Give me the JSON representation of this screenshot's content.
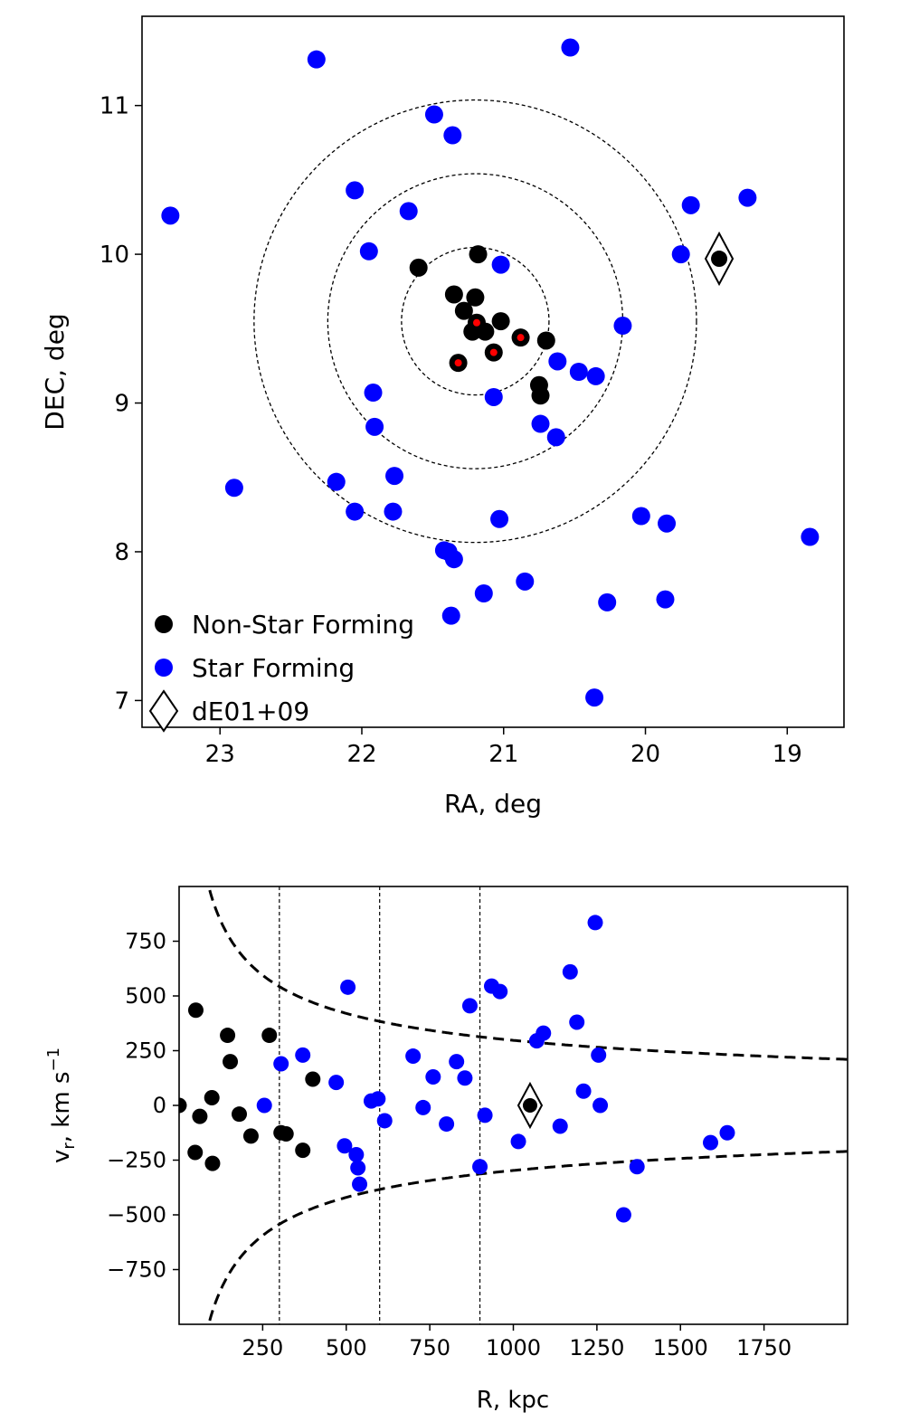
{
  "chart_data": [
    {
      "type": "scatter",
      "xlabel": "RA, deg",
      "ylabel": "DEC, deg",
      "xlim": [
        23.55,
        18.6
      ],
      "ylim": [
        6.82,
        11.6
      ],
      "xticks": [
        "23",
        "22",
        "21",
        "20",
        "19"
      ],
      "xtick_values": [
        23,
        22,
        21,
        20,
        19
      ],
      "yticks": [
        "7",
        "8",
        "9",
        "10",
        "11"
      ],
      "ytick_values": [
        7,
        8,
        9,
        10,
        11
      ],
      "legend_position": "lower-left",
      "legend": [
        "Non-Star Forming",
        "Star Forming",
        "dE01+09"
      ],
      "circles": {
        "center": [
          21.2,
          9.55
        ],
        "radius_deg": [
          0.52,
          1.04,
          1.56
        ],
        "style": "dotted"
      },
      "colors": {
        "non_star_forming": "#000000",
        "star_forming": "#0000ff",
        "highlight": "#ff0000"
      },
      "series": [
        {
          "name": "Non-Star Forming",
          "points": [
            [
              21.6,
              9.91
            ],
            [
              21.18,
              10.0
            ],
            [
              21.35,
              9.73
            ],
            [
              21.2,
              9.71
            ],
            [
              21.28,
              9.62
            ],
            [
              21.19,
              9.54
            ],
            [
              21.22,
              9.48
            ],
            [
              21.13,
              9.48
            ],
            [
              21.02,
              9.55
            ],
            [
              20.88,
              9.44
            ],
            [
              20.7,
              9.42
            ],
            [
              21.07,
              9.34
            ],
            [
              21.32,
              9.27
            ],
            [
              20.75,
              9.12
            ],
            [
              20.74,
              9.05
            ]
          ],
          "highlight_points": [
            [
              21.19,
              9.54
            ],
            [
              20.88,
              9.44
            ],
            [
              21.07,
              9.34
            ],
            [
              21.32,
              9.27
            ]
          ]
        },
        {
          "name": "Star Forming",
          "points": [
            [
              22.32,
              11.31
            ],
            [
              20.53,
              11.39
            ],
            [
              21.49,
              10.94
            ],
            [
              21.36,
              10.8
            ],
            [
              22.05,
              10.43
            ],
            [
              21.67,
              10.29
            ],
            [
              19.68,
              10.33
            ],
            [
              19.28,
              10.38
            ],
            [
              23.35,
              10.26
            ],
            [
              21.95,
              10.02
            ],
            [
              19.75,
              10.0
            ],
            [
              21.02,
              9.93
            ],
            [
              20.16,
              9.52
            ],
            [
              20.62,
              9.28
            ],
            [
              20.47,
              9.21
            ],
            [
              20.35,
              9.18
            ],
            [
              21.92,
              9.07
            ],
            [
              21.07,
              9.04
            ],
            [
              21.91,
              8.84
            ],
            [
              20.74,
              8.86
            ],
            [
              20.63,
              8.77
            ],
            [
              22.9,
              8.43
            ],
            [
              22.18,
              8.47
            ],
            [
              21.77,
              8.51
            ],
            [
              22.05,
              8.27
            ],
            [
              21.78,
              8.27
            ],
            [
              21.03,
              8.22
            ],
            [
              20.03,
              8.24
            ],
            [
              19.85,
              8.19
            ],
            [
              18.84,
              8.1
            ],
            [
              21.42,
              8.01
            ],
            [
              21.39,
              8.0
            ],
            [
              21.35,
              7.95
            ],
            [
              20.85,
              7.8
            ],
            [
              21.14,
              7.72
            ],
            [
              20.27,
              7.66
            ],
            [
              19.86,
              7.68
            ],
            [
              21.37,
              7.57
            ],
            [
              20.36,
              7.02
            ]
          ]
        },
        {
          "name": "dE01+09",
          "points": [
            [
              19.48,
              9.97
            ]
          ],
          "marker": "diamond"
        }
      ]
    },
    {
      "type": "scatter",
      "xlabel": "R, kpc",
      "ylabel": "v_r, km s^-1",
      "ylabel_parts": {
        "v": "v",
        "sub": "r",
        "unit": ", km s",
        "sup": "−1"
      },
      "xlim": [
        0,
        2000
      ],
      "ylim": [
        -1000,
        1000
      ],
      "xticks": [
        "250",
        "500",
        "750",
        "1000",
        "1250",
        "1500",
        "1750"
      ],
      "xtick_values": [
        250,
        500,
        750,
        1000,
        1250,
        1500,
        1750
      ],
      "yticks": [
        "750",
        "500",
        "250",
        "0",
        "−250",
        "−500",
        "−750"
      ],
      "ytick_values": [
        750,
        500,
        250,
        0,
        -250,
        -500,
        -750
      ],
      "vlines": [
        300,
        600,
        900
      ],
      "escape_curve": {
        "form": "v = ±A / sqrt(R)",
        "A": 9400,
        "style": "dashed"
      },
      "colors": {
        "non_star_forming": "#000000",
        "star_forming": "#0000ff"
      },
      "series": [
        {
          "name": "Non-Star Forming",
          "points": [
            [
              0,
              0
            ],
            [
              50,
              435
            ],
            [
              62,
              -50
            ],
            [
              48,
              -215
            ],
            [
              98,
              35
            ],
            [
              100,
              -265
            ],
            [
              145,
              320
            ],
            [
              153,
              200
            ],
            [
              180,
              -40
            ],
            [
              215,
              -140
            ],
            [
              270,
              320
            ],
            [
              305,
              -125
            ],
            [
              320,
              -130
            ],
            [
              370,
              -205
            ],
            [
              400,
              120
            ]
          ]
        },
        {
          "name": "Star Forming",
          "points": [
            [
              255,
              0
            ],
            [
              305,
              190
            ],
            [
              370,
              230
            ],
            [
              470,
              105
            ],
            [
              505,
              540
            ],
            [
              495,
              -185
            ],
            [
              530,
              -225
            ],
            [
              535,
              -285
            ],
            [
              540,
              -360
            ],
            [
              575,
              20
            ],
            [
              595,
              30
            ],
            [
              615,
              -70
            ],
            [
              700,
              225
            ],
            [
              730,
              -10
            ],
            [
              760,
              130
            ],
            [
              800,
              -85
            ],
            [
              830,
              200
            ],
            [
              855,
              125
            ],
            [
              870,
              455
            ],
            [
              900,
              -280
            ],
            [
              915,
              -45
            ],
            [
              935,
              545
            ],
            [
              960,
              520
            ],
            [
              1015,
              -165
            ],
            [
              1070,
              295
            ],
            [
              1090,
              330
            ],
            [
              1140,
              -95
            ],
            [
              1170,
              610
            ],
            [
              1190,
              380
            ],
            [
              1210,
              65
            ],
            [
              1245,
              835
            ],
            [
              1255,
              230
            ],
            [
              1260,
              0
            ],
            [
              1330,
              -500
            ],
            [
              1370,
              -280
            ],
            [
              1590,
              -170
            ],
            [
              1640,
              -125
            ]
          ]
        },
        {
          "name": "dE01+09",
          "points": [
            [
              1050,
              0
            ]
          ],
          "marker": "diamond"
        }
      ]
    }
  ]
}
